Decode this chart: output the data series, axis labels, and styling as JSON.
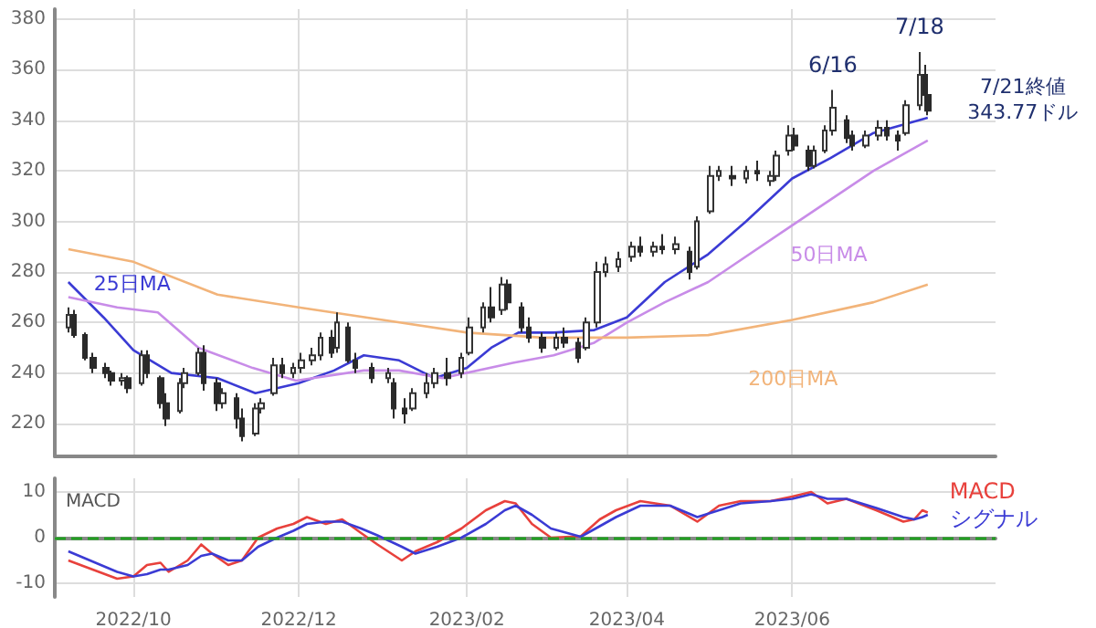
{
  "chart_data": [
    {
      "type": "candlestick",
      "xlim": [
        "2022-09-02",
        "2023-08-15"
      ],
      "ylim": [
        207,
        384
      ],
      "yticks": [
        220,
        240,
        260,
        280,
        300,
        320,
        340,
        360,
        380
      ],
      "xticks": [
        {
          "value": "2022-10-01",
          "label": null
        },
        {
          "value": "2022-12-01",
          "label": null
        },
        {
          "value": "2023-02-01",
          "label": null
        },
        {
          "value": "2023-04-01",
          "label": null
        },
        {
          "value": "2023-06-01",
          "label": null
        }
      ],
      "tick_labels": "y",
      "grid": true,
      "x": [
        "2022-09-07",
        "2022-09-09",
        "2022-09-13",
        "2022-09-16",
        "2022-09-21",
        "2022-09-23",
        "2022-09-27",
        "2022-09-29",
        "2022-10-04",
        "2022-10-06",
        "2022-10-11",
        "2022-10-13",
        "2022-10-18",
        "2022-10-20",
        "2022-10-25",
        "2022-10-27",
        "2022-11-01",
        "2022-11-03",
        "2022-11-08",
        "2022-11-10",
        "2022-11-15",
        "2022-11-17",
        "2022-11-22",
        "2022-11-25",
        "2022-11-29",
        "2022-12-02",
        "2022-12-06",
        "2022-12-09",
        "2022-12-13",
        "2022-12-15",
        "2022-12-19",
        "2022-12-22",
        "2022-12-28",
        "2023-01-03",
        "2023-01-05",
        "2023-01-09",
        "2023-01-12",
        "2023-01-17",
        "2023-01-20",
        "2023-01-25",
        "2023-01-30",
        "2023-02-02",
        "2023-02-07",
        "2023-02-10",
        "2023-02-14",
        "2023-02-16",
        "2023-02-21",
        "2023-02-24",
        "2023-03-01",
        "2023-03-06",
        "2023-03-09",
        "2023-03-14",
        "2023-03-17",
        "2023-03-21",
        "2023-03-24",
        "2023-03-29",
        "2023-04-03",
        "2023-04-06",
        "2023-04-11",
        "2023-04-14",
        "2023-04-19",
        "2023-04-24",
        "2023-04-27",
        "2023-05-02",
        "2023-05-05",
        "2023-05-10",
        "2023-05-15",
        "2023-05-19",
        "2023-05-24",
        "2023-05-26",
        "2023-05-31",
        "2023-06-02",
        "2023-06-07",
        "2023-06-09",
        "2023-06-13",
        "2023-06-16",
        "2023-06-21",
        "2023-06-23",
        "2023-06-28",
        "2023-07-03",
        "2023-07-06",
        "2023-07-10",
        "2023-07-13",
        "2023-07-18",
        "2023-07-20",
        "2023-07-21"
      ],
      "ohlc": [
        [
          258,
          266,
          256,
          263
        ],
        [
          263,
          265,
          254,
          255
        ],
        [
          255,
          256,
          245,
          246
        ],
        [
          246,
          248,
          240,
          242
        ],
        [
          242,
          244,
          238,
          240
        ],
        [
          240,
          241,
          235,
          237
        ],
        [
          237,
          240,
          235,
          238
        ],
        [
          238,
          239,
          232,
          234
        ],
        [
          236,
          249,
          235,
          247
        ],
        [
          247,
          249,
          238,
          240
        ],
        [
          238,
          239,
          226,
          228
        ],
        [
          228,
          232,
          219,
          222
        ],
        [
          225,
          238,
          224,
          236
        ],
        [
          236,
          242,
          234,
          240
        ],
        [
          240,
          250,
          239,
          248
        ],
        [
          248,
          251,
          233,
          236
        ],
        [
          236,
          238,
          225,
          228
        ],
        [
          228,
          234,
          226,
          232
        ],
        [
          230,
          232,
          218,
          222
        ],
        [
          222,
          226,
          213,
          215
        ],
        [
          216,
          228,
          215,
          226
        ],
        [
          226,
          230,
          224,
          228
        ],
        [
          232,
          246,
          231,
          243
        ],
        [
          243,
          246,
          238,
          240
        ],
        [
          240,
          244,
          238,
          242
        ],
        [
          242,
          248,
          240,
          245
        ],
        [
          245,
          250,
          243,
          247
        ],
        [
          247,
          256,
          245,
          254
        ],
        [
          254,
          257,
          246,
          248
        ],
        [
          250,
          264,
          248,
          260
        ],
        [
          258,
          260,
          244,
          245
        ],
        [
          245,
          248,
          240,
          242
        ],
        [
          242,
          244,
          236,
          238
        ],
        [
          238,
          242,
          236,
          240
        ],
        [
          236,
          238,
          222,
          226
        ],
        [
          226,
          230,
          220,
          224
        ],
        [
          226,
          234,
          225,
          232
        ],
        [
          232,
          240,
          230,
          236
        ],
        [
          236,
          242,
          234,
          240
        ],
        [
          240,
          246,
          235,
          238
        ],
        [
          240,
          248,
          238,
          246
        ],
        [
          248,
          262,
          247,
          258
        ],
        [
          258,
          268,
          256,
          266
        ],
        [
          266,
          274,
          260,
          262
        ],
        [
          265,
          278,
          263,
          275
        ],
        [
          275,
          277,
          265,
          268
        ],
        [
          266,
          268,
          256,
          258
        ],
        [
          258,
          262,
          252,
          254
        ],
        [
          254,
          256,
          248,
          250
        ],
        [
          250,
          256,
          249,
          254
        ],
        [
          254,
          258,
          250,
          252
        ],
        [
          252,
          254,
          244,
          246
        ],
        [
          250,
          262,
          249,
          260
        ],
        [
          260,
          284,
          258,
          280
        ],
        [
          280,
          286,
          278,
          283
        ],
        [
          282,
          288,
          280,
          285
        ],
        [
          286,
          292,
          284,
          290
        ],
        [
          290,
          294,
          286,
          288
        ],
        [
          288,
          292,
          286,
          290
        ],
        [
          290,
          295,
          287,
          289
        ],
        [
          289,
          294,
          287,
          291
        ],
        [
          288,
          290,
          277,
          280
        ],
        [
          282,
          302,
          281,
          300
        ],
        [
          304,
          322,
          303,
          318
        ],
        [
          318,
          322,
          316,
          320
        ],
        [
          318,
          322,
          314,
          317
        ],
        [
          317,
          322,
          315,
          320
        ],
        [
          320,
          324,
          316,
          319
        ],
        [
          316,
          320,
          314,
          318
        ],
        [
          318,
          328,
          316,
          326
        ],
        [
          328,
          338,
          326,
          334
        ],
        [
          334,
          337,
          328,
          330
        ],
        [
          328,
          330,
          320,
          322
        ],
        [
          322,
          330,
          321,
          328
        ],
        [
          328,
          338,
          327,
          336
        ],
        [
          336,
          352,
          334,
          345
        ],
        [
          340,
          342,
          331,
          333
        ],
        [
          334,
          336,
          328,
          330
        ],
        [
          330,
          336,
          329,
          334
        ],
        [
          334,
          340,
          332,
          337
        ],
        [
          337,
          340,
          332,
          334
        ],
        [
          334,
          336,
          328,
          332
        ],
        [
          335,
          348,
          334,
          346
        ],
        [
          346,
          367,
          344,
          358
        ],
        [
          358,
          362,
          348,
          350
        ],
        [
          350,
          352,
          342,
          343.77
        ]
      ],
      "series": [
        {
          "type": "line",
          "name": "25日MA",
          "color": "#3b3bd4",
          "x": [
            "2022-09-07",
            "2022-09-20",
            "2022-10-01",
            "2022-10-15",
            "2022-11-01",
            "2022-11-15",
            "2022-12-01",
            "2022-12-14",
            "2022-12-25",
            "2023-01-07",
            "2023-01-20",
            "2023-02-01",
            "2023-02-10",
            "2023-02-20",
            "2023-03-05",
            "2023-03-20",
            "2023-04-01",
            "2023-04-15",
            "2023-05-01",
            "2023-05-15",
            "2023-06-01",
            "2023-06-15",
            "2023-07-01",
            "2023-07-21"
          ],
          "values": [
            276,
            262,
            249,
            240,
            238,
            232,
            236,
            241,
            247,
            245,
            238,
            242,
            250,
            256,
            256,
            257,
            262,
            276,
            287,
            300,
            317,
            325,
            335,
            341
          ]
        },
        {
          "type": "line",
          "name": "50日MA",
          "color": "#c88ce8",
          "x": [
            "2022-09-07",
            "2022-09-25",
            "2022-10-10",
            "2022-10-25",
            "2022-11-14",
            "2022-11-30",
            "2022-12-25",
            "2023-01-07",
            "2023-01-23",
            "2023-02-18",
            "2023-03-05",
            "2023-03-20",
            "2023-04-01",
            "2023-04-15",
            "2023-05-01",
            "2023-05-30",
            "2023-07-01",
            "2023-07-21"
          ],
          "values": [
            270,
            266,
            264,
            250,
            242,
            237,
            241,
            241,
            238,
            244,
            247,
            252,
            260,
            268,
            276,
            297,
            320,
            332
          ]
        },
        {
          "type": "line",
          "name": "200日MA",
          "color": "#f2b47a",
          "x": [
            "2022-09-07",
            "2022-10-01",
            "2022-11-01",
            "2022-12-01",
            "2023-01-01",
            "2023-02-01",
            "2023-03-01",
            "2023-04-01",
            "2023-05-01",
            "2023-06-01",
            "2023-07-01",
            "2023-07-21"
          ],
          "values": [
            289,
            284,
            271,
            266,
            261,
            256,
            254,
            254,
            255,
            261,
            268,
            275
          ]
        }
      ],
      "annotations": [
        {
          "text": "6/16",
          "x": "2023-06-16",
          "y": 352
        },
        {
          "text": "7/18",
          "x": "2023-07-18",
          "y": 367
        },
        {
          "text": "7/21終値\n343.77ドル",
          "x": "2023-07-21",
          "y": 343.77
        }
      ]
    },
    {
      "type": "line",
      "ylabel": "MACD",
      "xlim": [
        "2022-09-02",
        "2023-08-15"
      ],
      "ylim": [
        -13,
        13
      ],
      "yticks": [
        -10,
        0,
        10
      ],
      "xticks": [
        {
          "value": "2022-10-01",
          "label": "2022/10"
        },
        {
          "value": "2022-12-01",
          "label": "2022/12"
        },
        {
          "value": "2023-02-01",
          "label": "2023/02"
        },
        {
          "value": "2023-04-01",
          "label": "2023/04"
        },
        {
          "value": "2023-06-01",
          "label": "2023/06"
        }
      ],
      "grid": true,
      "ref_lines": [
        {
          "axis": "y",
          "value": 0,
          "color": "#22a022",
          "line_style": "dashed"
        }
      ],
      "x": [
        "2022-09-07",
        "2022-09-25",
        "2022-10-01",
        "2022-10-06",
        "2022-10-11",
        "2022-10-14",
        "2022-10-21",
        "2022-10-26",
        "2022-10-30",
        "2022-11-05",
        "2022-11-10",
        "2022-11-16",
        "2022-11-23",
        "2022-11-29",
        "2022-12-04",
        "2022-12-11",
        "2022-12-17",
        "2022-12-24",
        "2022-12-30",
        "2023-01-08",
        "2023-01-13",
        "2023-01-21",
        "2023-01-30",
        "2023-02-08",
        "2023-02-15",
        "2023-02-19",
        "2023-02-25",
        "2023-03-04",
        "2023-03-15",
        "2023-03-22",
        "2023-03-28",
        "2023-04-06",
        "2023-04-17",
        "2023-04-27",
        "2023-05-05",
        "2023-05-13",
        "2023-05-24",
        "2023-06-01",
        "2023-06-08",
        "2023-06-14",
        "2023-06-21",
        "2023-07-02",
        "2023-07-12",
        "2023-07-16",
        "2023-07-19",
        "2023-07-21"
      ],
      "series": [
        {
          "name": "MACD",
          "color": "#e8413c",
          "values": [
            -5,
            -9,
            -8.5,
            -6,
            -5.5,
            -7.5,
            -5,
            -1.5,
            -3.5,
            -6,
            -5,
            0,
            2,
            3,
            4.5,
            3,
            4,
            1,
            -1.5,
            -5,
            -3,
            -1,
            2,
            6,
            8,
            7.5,
            3,
            0,
            0.3,
            4,
            6,
            8,
            7,
            3.5,
            7,
            8,
            8,
            9,
            10,
            7.5,
            8.5,
            6,
            3.5,
            4,
            6,
            5.5
          ]
        },
        {
          "name": "シグナル",
          "color": "#3b3bd4",
          "values": [
            -3,
            -7.5,
            -8.5,
            -8,
            -7,
            -7,
            -6,
            -4,
            -3.5,
            -5,
            -5,
            -2,
            0,
            1.5,
            3,
            3.5,
            3.5,
            2,
            0.5,
            -2,
            -3.5,
            -2,
            0,
            3,
            6,
            7,
            5,
            2,
            0.2,
            2.5,
            4.5,
            7,
            7,
            4.5,
            6,
            7.5,
            8,
            8.5,
            9.5,
            8.5,
            8.5,
            6.5,
            4.5,
            4,
            4.5,
            5
          ]
        }
      ]
    }
  ]
}
